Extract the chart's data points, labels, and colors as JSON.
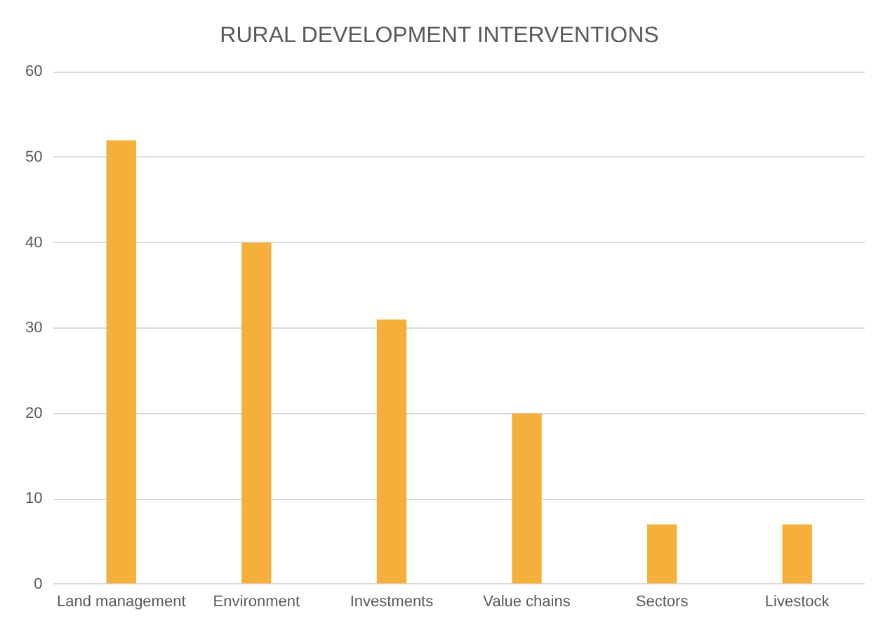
{
  "chart_data": {
    "type": "bar",
    "title": "RURAL DEVELOPMENT INTERVENTIONS",
    "categories": [
      "Land management",
      "Environment",
      "Investments",
      "Value chains",
      "Sectors",
      "Livestock"
    ],
    "values": [
      52,
      40,
      31,
      20,
      7,
      7
    ],
    "color": "#f4b03a",
    "ylim": [
      0,
      60
    ],
    "yticks": [
      0,
      10,
      20,
      30,
      40,
      50,
      60
    ],
    "grid": "y",
    "legend": false
  }
}
